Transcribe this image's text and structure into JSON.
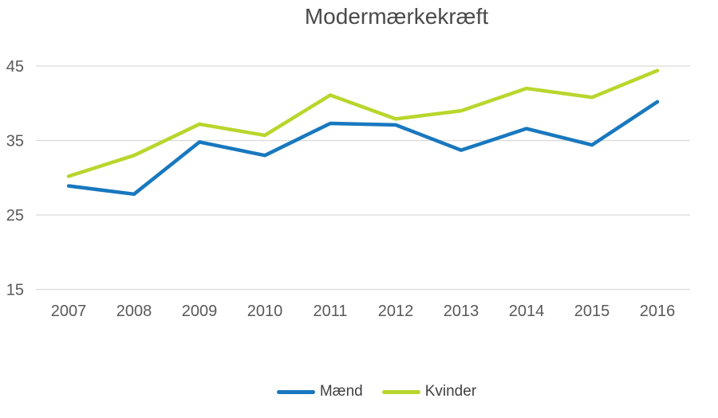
{
  "chart_data": {
    "type": "line",
    "title": "Modermærkekræft",
    "categories": [
      "2007",
      "2008",
      "2009",
      "2010",
      "2011",
      "2012",
      "2013",
      "2014",
      "2015",
      "2016"
    ],
    "series": [
      {
        "name": "Mænd",
        "color": "#1878bf",
        "values": [
          28.9,
          27.8,
          34.8,
          33.0,
          37.3,
          37.1,
          33.7,
          36.6,
          34.4,
          40.2
        ]
      },
      {
        "name": "Kvinder",
        "color": "#b8d62c",
        "values": [
          30.2,
          33.0,
          37.2,
          35.7,
          41.1,
          37.9,
          39.0,
          42.0,
          40.8,
          44.4
        ]
      }
    ],
    "xlabel": "",
    "ylabel": "",
    "ylim": [
      15,
      45
    ],
    "yticks": [
      45,
      35,
      25,
      15
    ],
    "grid": true,
    "legend_position": "bottom"
  },
  "colors": {
    "gridline": "#d9d9d9",
    "axis_text": "#595959",
    "title_text": "#4a4a4a",
    "legend_text": "#404040",
    "background": "#ffffff"
  }
}
